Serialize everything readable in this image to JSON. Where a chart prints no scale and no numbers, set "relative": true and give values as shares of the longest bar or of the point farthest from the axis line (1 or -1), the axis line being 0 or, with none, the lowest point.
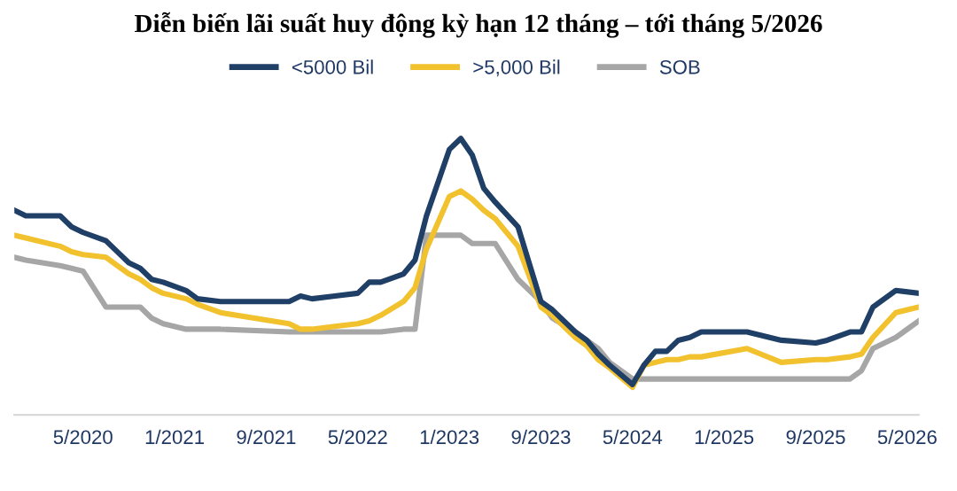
{
  "chart_data": {
    "type": "line",
    "title": "Diễn biến lãi suất huy động kỳ hạn 12 tháng – tới tháng 5/2026",
    "relative": true,
    "x": [
      "2019-11",
      "2019-12",
      "2020-03",
      "2020-04",
      "2020-05",
      "2020-07",
      "2020-08",
      "2020-09",
      "2020-10",
      "2020-11",
      "2020-12",
      "2021-02",
      "2021-03",
      "2021-05",
      "2021-11",
      "2021-12",
      "2022-01",
      "2022-03",
      "2022-05",
      "2022-06",
      "2022-07",
      "2022-09",
      "2022-10",
      "2022-11",
      "2023-01",
      "2023-02",
      "2023-03",
      "2023-04",
      "2023-05",
      "2023-07",
      "2023-09",
      "2023-10",
      "2023-12",
      "2024-01",
      "2024-02",
      "2024-03",
      "2024-05",
      "2024-06",
      "2024-07",
      "2024-08",
      "2024-09",
      "2024-10",
      "2024-11",
      "2025-03",
      "2025-06",
      "2025-09",
      "2025-10",
      "2025-12",
      "2026-01",
      "2026-02",
      "2026-04",
      "2026-06"
    ],
    "xlim": [
      "2019-11",
      "2026-06"
    ],
    "xticks": [
      {
        "value": "2020-05",
        "label": "5/2020"
      },
      {
        "value": "2021-01",
        "label": "1/2021"
      },
      {
        "value": "2021-09",
        "label": "9/2021"
      },
      {
        "value": "2022-05",
        "label": "5/2022"
      },
      {
        "value": "2023-01",
        "label": "1/2023"
      },
      {
        "value": "2023-09",
        "label": "9/2023"
      },
      {
        "value": "2024-05",
        "label": "5/2024"
      },
      {
        "value": "2025-01",
        "label": "1/2025"
      },
      {
        "value": "2025-09",
        "label": "9/2025"
      },
      {
        "value": "2026-05",
        "label": "5/2026"
      }
    ],
    "series": [
      {
        "name": "<5000 Bil",
        "color": "#1f3f66",
        "values": [
          0.74,
          0.72,
          0.72,
          0.68,
          0.66,
          0.63,
          0.59,
          0.55,
          0.53,
          0.49,
          0.48,
          0.45,
          0.42,
          0.41,
          0.41,
          0.43,
          0.42,
          0.43,
          0.44,
          0.48,
          0.48,
          0.51,
          0.56,
          0.72,
          0.96,
          1.0,
          0.94,
          0.82,
          0.77,
          0.68,
          0.41,
          0.38,
          0.3,
          0.27,
          0.22,
          0.18,
          0.11,
          0.18,
          0.23,
          0.23,
          0.27,
          0.28,
          0.3,
          0.3,
          0.27,
          0.26,
          0.27,
          0.3,
          0.3,
          0.39,
          0.45,
          0.44
        ]
      },
      {
        "name": ">5,000 Bil",
        "color": "#f2c12e",
        "values": [
          0.65,
          0.64,
          0.61,
          0.59,
          0.58,
          0.57,
          0.54,
          0.51,
          0.49,
          0.46,
          0.44,
          0.42,
          0.4,
          0.37,
          0.33,
          0.31,
          0.31,
          0.32,
          0.33,
          0.34,
          0.36,
          0.41,
          0.46,
          0.6,
          0.79,
          0.81,
          0.78,
          0.74,
          0.71,
          0.61,
          0.39,
          0.36,
          0.28,
          0.25,
          0.2,
          0.17,
          0.1,
          0.18,
          0.19,
          0.2,
          0.2,
          0.21,
          0.21,
          0.24,
          0.19,
          0.2,
          0.2,
          0.21,
          0.22,
          0.28,
          0.37,
          0.39
        ]
      },
      {
        "name": "SOB",
        "color": "#a6a6a6",
        "values": [
          0.57,
          0.56,
          0.54,
          0.53,
          0.52,
          0.39,
          0.39,
          0.39,
          0.39,
          0.35,
          0.33,
          0.31,
          0.31,
          0.31,
          0.3,
          0.3,
          0.3,
          0.3,
          0.3,
          0.3,
          0.3,
          0.31,
          0.31,
          0.65,
          0.65,
          0.65,
          0.62,
          0.62,
          0.62,
          0.49,
          0.41,
          0.35,
          0.3,
          0.27,
          0.24,
          0.19,
          0.13,
          0.13,
          0.13,
          0.13,
          0.13,
          0.13,
          0.13,
          0.13,
          0.13,
          0.13,
          0.13,
          0.13,
          0.16,
          0.24,
          0.28,
          0.34
        ]
      }
    ],
    "legend": "top",
    "grid": false,
    "marker": "none",
    "line_style": "solid"
  }
}
